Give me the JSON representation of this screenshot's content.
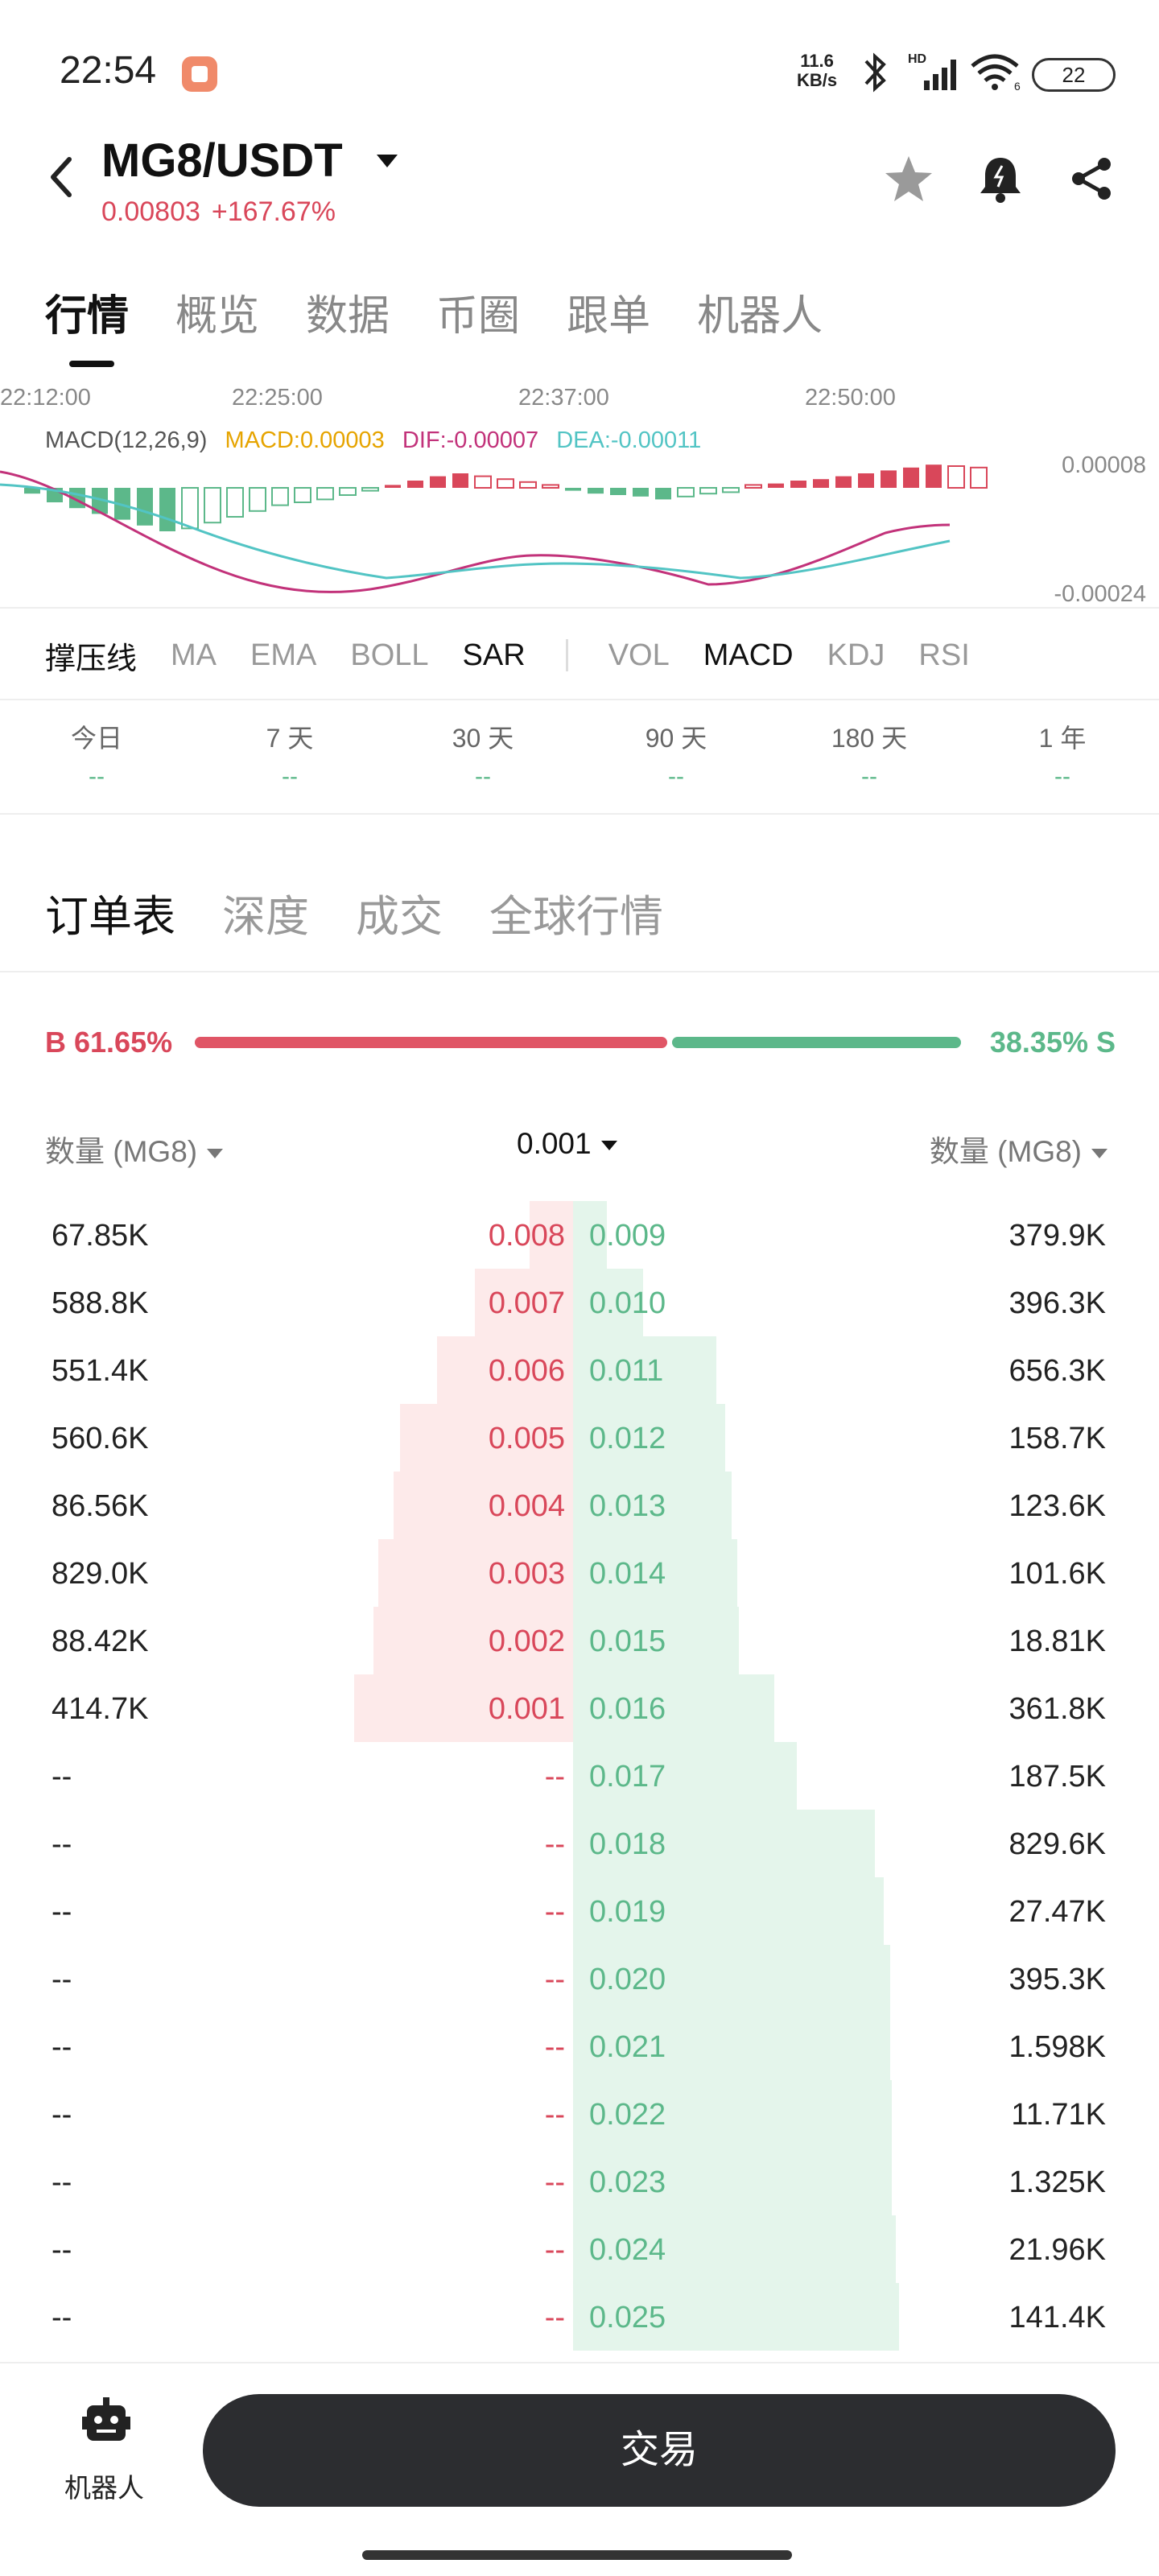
{
  "status_bar": {
    "time": "22:54",
    "net_speed_value": "11.6",
    "net_speed_unit": "KB/s",
    "battery": "22",
    "icons": [
      "bluetooth-icon",
      "signal-icon",
      "wifi-icon"
    ]
  },
  "header": {
    "pair": "MG8/USDT",
    "price": "0.00803",
    "change": "+167.67%"
  },
  "main_tabs": [
    "行情",
    "概览",
    "数据",
    "币圈",
    "跟单",
    "机器人"
  ],
  "chart": {
    "times": [
      "22:12:00",
      "22:25:00",
      "22:37:00",
      "22:50:00"
    ],
    "macd_label": "MACD(12,26,9)",
    "macd_value": "MACD:0.00003",
    "dif_value": "DIF:-0.00007",
    "dea_value": "DEA:-0.00011",
    "y_top": "0.00008",
    "y_bottom": "-0.00024",
    "colors": {
      "macd": "#e6a400",
      "dif": "#c2327a",
      "dea": "#52c4c4",
      "up": "#d9475a",
      "down": "#5cb88a"
    }
  },
  "indicators": {
    "main": [
      "撑压线",
      "MA",
      "EMA",
      "BOLL",
      "SAR"
    ],
    "sub": [
      "VOL",
      "MACD",
      "KDJ",
      "RSI"
    ]
  },
  "periods": [
    {
      "label": "今日",
      "value": "--"
    },
    {
      "label": "7 天",
      "value": "--"
    },
    {
      "label": "30 天",
      "value": "--"
    },
    {
      "label": "90 天",
      "value": "--"
    },
    {
      "label": "180 天",
      "value": "--"
    },
    {
      "label": "1 年",
      "value": "--"
    }
  ],
  "orderbook_tabs": [
    "订单表",
    "深度",
    "成交",
    "全球行情"
  ],
  "ratio": {
    "buy": "B 61.65%",
    "sell": "38.35% S",
    "buy_fraction": 0.6165
  },
  "orderbook_header": {
    "qty_left": "数量 (MG8)",
    "precision": "0.001",
    "qty_right": "数量 (MG8)"
  },
  "orderbook_rows": [
    {
      "bid_qty": "67.85K",
      "bid_price": "0.008",
      "ask_price": "0.009",
      "ask_qty": "379.9K",
      "bid_depth": 0.2,
      "ask_depth": 0.2
    },
    {
      "bid_qty": "588.8K",
      "bid_price": "0.007",
      "ask_price": "0.010",
      "ask_qty": "396.3K",
      "bid_depth": 0.45,
      "ask_depth": 0.41
    },
    {
      "bid_qty": "551.4K",
      "bid_price": "0.006",
      "ask_price": "0.011",
      "ask_qty": "656.3K",
      "bid_depth": 0.62,
      "ask_depth": 0.84
    },
    {
      "bid_qty": "560.6K",
      "bid_price": "0.005",
      "ask_price": "0.012",
      "ask_qty": "158.7K",
      "bid_depth": 0.79,
      "ask_depth": 0.89
    },
    {
      "bid_qty": "86.56K",
      "bid_price": "0.004",
      "ask_price": "0.013",
      "ask_qty": "123.6K",
      "bid_depth": 0.82,
      "ask_depth": 0.93
    },
    {
      "bid_qty": "829.0K",
      "bid_price": "0.003",
      "ask_price": "0.014",
      "ask_qty": "101.6K",
      "bid_depth": 0.89,
      "ask_depth": 0.96
    },
    {
      "bid_qty": "88.42K",
      "bid_price": "0.002",
      "ask_price": "0.015",
      "ask_qty": "18.81K",
      "bid_depth": 0.91,
      "ask_depth": 0.97
    },
    {
      "bid_qty": "414.7K",
      "bid_price": "0.001",
      "ask_price": "0.016",
      "ask_qty": "361.8K",
      "bid_depth": 1.0,
      "ask_depth": 1.18
    },
    {
      "bid_qty": "--",
      "bid_price": "--",
      "ask_price": "0.017",
      "ask_qty": "187.5K",
      "bid_depth": 0,
      "ask_depth": 1.31
    },
    {
      "bid_qty": "--",
      "bid_price": "--",
      "ask_price": "0.018",
      "ask_qty": "829.6K",
      "bid_depth": 0,
      "ask_depth": 1.77
    },
    {
      "bid_qty": "--",
      "bid_price": "--",
      "ask_price": "0.019",
      "ask_qty": "27.47K",
      "bid_depth": 0,
      "ask_depth": 1.82
    },
    {
      "bid_qty": "--",
      "bid_price": "--",
      "ask_price": "0.020",
      "ask_qty": "395.3K",
      "bid_depth": 0,
      "ask_depth": 1.86
    },
    {
      "bid_qty": "--",
      "bid_price": "--",
      "ask_price": "0.021",
      "ask_qty": "1.598K",
      "bid_depth": 0,
      "ask_depth": 1.86
    },
    {
      "bid_qty": "--",
      "bid_price": "--",
      "ask_price": "0.022",
      "ask_qty": "11.71K",
      "bid_depth": 0,
      "ask_depth": 1.87
    },
    {
      "bid_qty": "--",
      "bid_price": "--",
      "ask_price": "0.023",
      "ask_qty": "1.325K",
      "bid_depth": 0,
      "ask_depth": 1.87
    },
    {
      "bid_qty": "--",
      "bid_price": "--",
      "ask_price": "0.024",
      "ask_qty": "21.96K",
      "bid_depth": 0,
      "ask_depth": 1.89
    },
    {
      "bid_qty": "--",
      "bid_price": "--",
      "ask_price": "0.025",
      "ask_qty": "141.4K",
      "bid_depth": 0,
      "ask_depth": 1.91
    }
  ],
  "bottom": {
    "robot_label": "机器人",
    "trade_label": "交易"
  }
}
